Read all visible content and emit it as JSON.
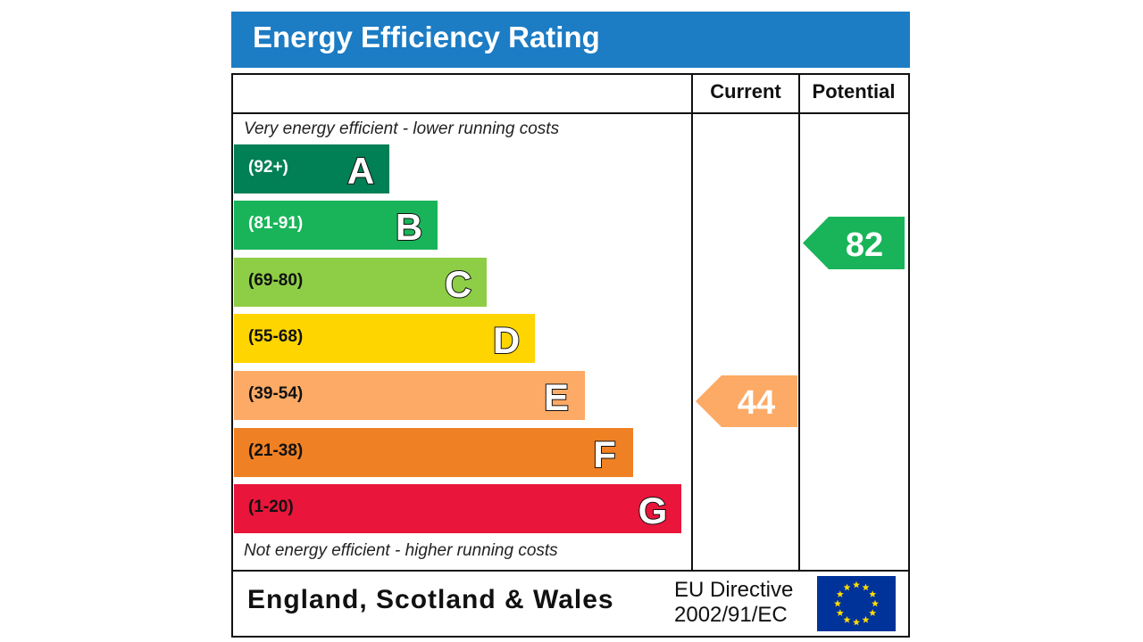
{
  "chart_data": {
    "type": "bar",
    "title": "Energy Efficiency Rating",
    "columns": [
      "Current",
      "Potential"
    ],
    "top_note": "Very energy efficient - lower running costs",
    "bottom_note": "Not energy efficient - higher running costs",
    "bands": [
      {
        "letter": "A",
        "range": "(92+)",
        "color": "#008054",
        "text_color": "#ffffff"
      },
      {
        "letter": "B",
        "range": "(81-91)",
        "color": "#19b459",
        "text_color": "#ffffff"
      },
      {
        "letter": "C",
        "range": "(69-80)",
        "color": "#8dce46",
        "text_color": "#111111"
      },
      {
        "letter": "D",
        "range": "(55-68)",
        "color": "#ffd500",
        "text_color": "#111111"
      },
      {
        "letter": "E",
        "range": "(39-54)",
        "color": "#fcaa65",
        "text_color": "#111111"
      },
      {
        "letter": "F",
        "range": "(21-38)",
        "color": "#ef8023",
        "text_color": "#111111"
      },
      {
        "letter": "G",
        "range": "(1-20)",
        "color": "#e9153b",
        "text_color": "#111111"
      }
    ],
    "current": {
      "value": "44",
      "band": "E",
      "color": "#fcaa65"
    },
    "potential": {
      "value": "82",
      "band": "B",
      "color": "#19b459"
    }
  },
  "footer": {
    "region": "England, Scotland & Wales",
    "directive_line1": "EU Directive",
    "directive_line2": "2002/91/EC"
  },
  "colors": {
    "title_bar": "#1c7cc4",
    "eu_flag": "#003399",
    "eu_stars": "#ffdd00"
  }
}
